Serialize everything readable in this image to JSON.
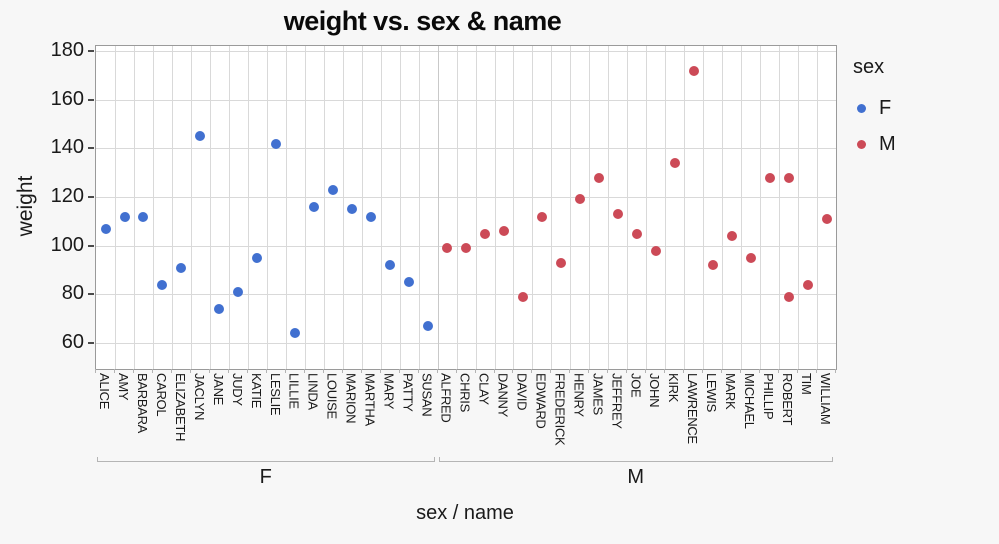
{
  "chart_data": {
    "type": "scatter",
    "title": "weight vs. sex & name",
    "xlabel": "sex / name",
    "ylabel": "weight",
    "legend_title": "sex",
    "legend_position": "right",
    "grid": true,
    "ylim": [
      49,
      183
    ],
    "yticks": [
      60,
      80,
      100,
      120,
      140,
      160,
      180
    ],
    "groups": [
      {
        "label": "F",
        "color": "#4170d0",
        "names": [
          "ALICE",
          "AMY",
          "BARBARA",
          "CAROL",
          "ELIZABETH",
          "JACLYN",
          "JANE",
          "JUDY",
          "KATIE",
          "LESLIE",
          "LILLIE",
          "LINDA",
          "LOUISE",
          "MARION",
          "MARTHA",
          "MARY",
          "PATTY",
          "SUSAN"
        ],
        "weights": [
          107,
          112,
          112,
          84,
          91,
          145,
          74,
          81,
          95,
          142,
          64,
          116,
          123,
          115,
          112,
          92,
          85,
          67
        ]
      },
      {
        "label": "M",
        "color": "#cc4a57",
        "names": [
          "ALFRED",
          "CHRIS",
          "CLAY",
          "DANNY",
          "DAVID",
          "EDWARD",
          "FREDERICK",
          "HENRY",
          "JAMES",
          "JEFFREY",
          "JOE",
          "JOHN",
          "KIRK",
          "LAWRENCE",
          "LEWIS",
          "MARK",
          "MICHAEL",
          "PHILLIP",
          "ROBERT",
          "TIM",
          "WILLIAM"
        ],
        "weights": [
          99,
          99,
          105,
          106,
          79,
          112,
          93,
          119,
          128,
          113,
          105,
          98,
          134,
          172,
          92,
          104,
          95,
          128,
          [
            79,
            128
          ],
          84,
          111
        ]
      }
    ]
  }
}
